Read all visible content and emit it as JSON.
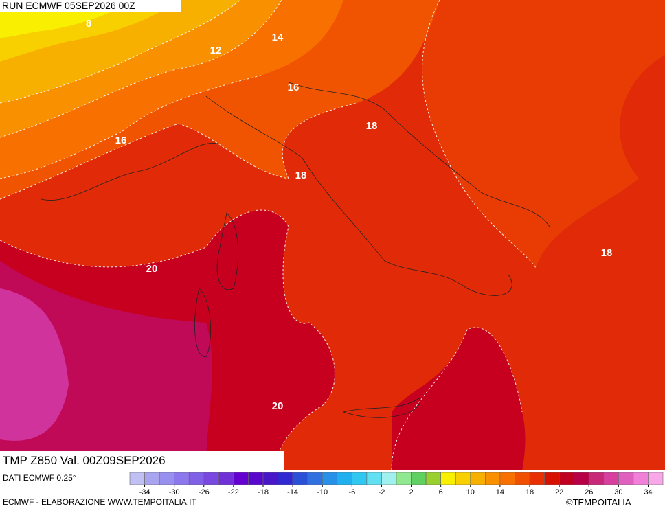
{
  "header": {
    "title": "RUN ECMWF 05SEP2026 00Z"
  },
  "map": {
    "contour_labels": [
      "8",
      "12",
      "14",
      "16",
      "16",
      "18",
      "18",
      "18",
      "20",
      "20"
    ]
  },
  "footer": {
    "title": "TMP Z850 Val. 00Z09SEP2026",
    "source": "DATI ECMWF 0.25°",
    "credit": "ECMWF - ELABORAZIONE WWW.TEMPOITALIA.IT",
    "brand": "©TEMPOITALIA"
  },
  "colorbar": {
    "lim": [
      -36,
      36
    ],
    "ticks": [
      -34,
      -30,
      -26,
      -22,
      -18,
      -14,
      -10,
      -6,
      -2,
      2,
      6,
      10,
      14,
      18,
      22,
      26,
      30,
      34
    ],
    "colors": [
      "#c0c0f4",
      "#a8a4f0",
      "#9890ee",
      "#8c78ec",
      "#8060e6",
      "#7848e0",
      "#7030d8",
      "#6400d0",
      "#5808cc",
      "#4818c8",
      "#3028d0",
      "#2a50d8",
      "#3070e0",
      "#2890e8",
      "#20b0f0",
      "#30c8f0",
      "#60e0f0",
      "#a0f0f0",
      "#90e890",
      "#60d060",
      "#98d030",
      "#f8f000",
      "#f8d000",
      "#f8b000",
      "#f89000",
      "#f87000",
      "#f05000",
      "#e83000",
      "#d81000",
      "#c00020",
      "#b80048",
      "#c82878",
      "#d840a0",
      "#e060c0",
      "#f080d8",
      "#f8a8e8"
    ]
  }
}
